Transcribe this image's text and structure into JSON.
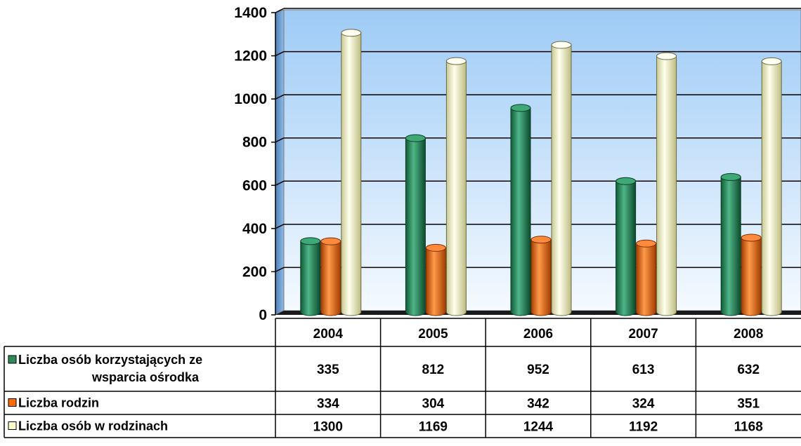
{
  "chart_data": {
    "type": "bar",
    "title": "",
    "xlabel": "",
    "ylabel": "",
    "categories": [
      "2004",
      "2005",
      "2006",
      "2007",
      "2008"
    ],
    "ylim": [
      0,
      1400
    ],
    "yticks": [
      0,
      200,
      400,
      600,
      800,
      1000,
      1200,
      1400
    ],
    "grid": true,
    "legend": "data table",
    "series": [
      {
        "name": "Liczba osób korzystających ze wsparcia ośrodka",
        "label_lines": [
          "Liczba osób korzystających ze",
          "wsparcia ośrodka"
        ],
        "color": "#2e8b57",
        "values": [
          335,
          812,
          952,
          613,
          632
        ]
      },
      {
        "name": "Liczba rodzin",
        "label_lines": [
          "Liczba rodzin"
        ],
        "color": "#ff6a00",
        "values": [
          334,
          304,
          342,
          324,
          351
        ]
      },
      {
        "name": "Liczba osób w rodzinach",
        "label_lines": [
          "Liczba osób w rodzinach"
        ],
        "color": "#ffffcc",
        "values": [
          1300,
          1169,
          1244,
          1192,
          1168
        ]
      }
    ]
  }
}
